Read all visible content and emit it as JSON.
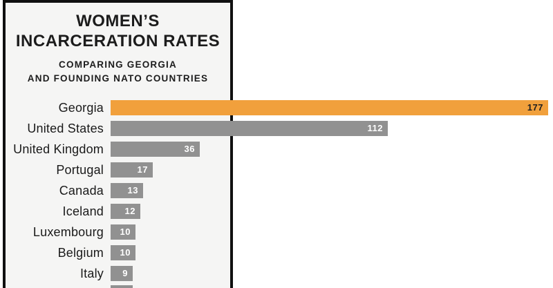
{
  "chart": {
    "title_line1": "WOMEN’S",
    "title_line2": "INCARCERATION RATES",
    "subtitle_line1": "COMPARING GEORGIA",
    "subtitle_line2": "AND FOUNDING NATO COUNTRIES"
  },
  "colors": {
    "highlight_bar": "#F1A03C",
    "default_bar": "#919191",
    "panel_bg": "#F5F5F4",
    "panel_border": "#101010",
    "value_text_default": "#FFFFFF",
    "value_text_highlight": "#1E1E1E",
    "label_text": "#1A1A1A"
  },
  "chart_data": {
    "type": "bar",
    "orientation": "horizontal",
    "title": "WOMEN’S INCARCERATION RATES",
    "subtitle": "COMPARING GEORGIA AND FOUNDING NATO COUNTRIES",
    "categories": [
      "Georgia",
      "United States",
      "United Kingdom",
      "Portugal",
      "Canada",
      "Iceland",
      "Luxembourg",
      "Belgium",
      "Italy"
    ],
    "values": [
      177,
      112,
      36,
      17,
      13,
      12,
      10,
      10,
      9
    ],
    "highlight_category": "Georgia",
    "value_labels": "inside-end",
    "xlim": [
      0,
      180
    ],
    "grid": false,
    "legend": "none",
    "partial_bottom_bar": {
      "label_visible": false,
      "value_estimate": 9,
      "cut_off": true
    }
  }
}
